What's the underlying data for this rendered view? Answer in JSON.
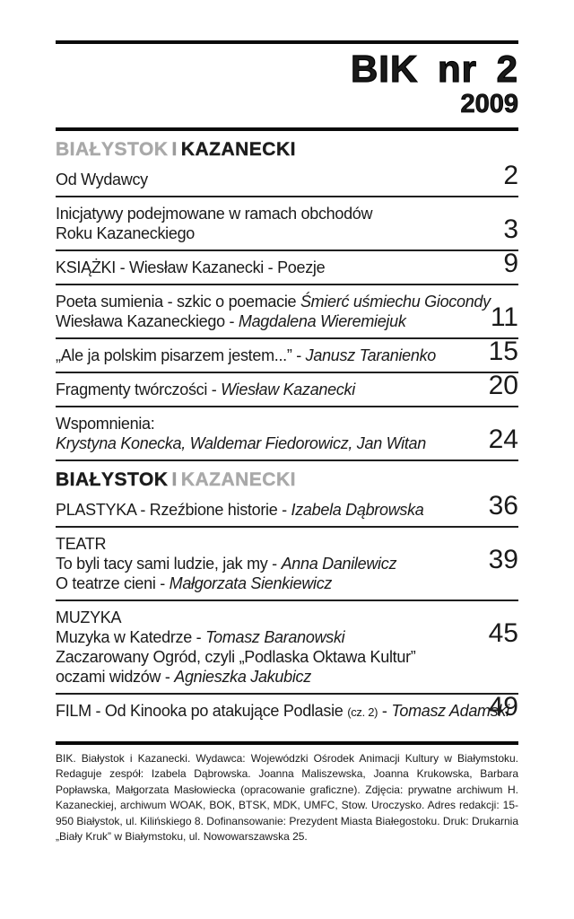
{
  "colors": {
    "ink": "#1a1a1a",
    "muted_gray": "#a9a9a9",
    "rule_black": "#0a0a0a"
  },
  "masthead": {
    "title": "BIK nr 2",
    "year": "2009"
  },
  "contents": {
    "section1": {
      "heading": {
        "left": "BIAŁYSTOK",
        "separator": "I",
        "right": "KAZANECKI"
      },
      "entries": [
        {
          "page": "2",
          "lines": [
            [
              {
                "text": "Od Wydawcy"
              }
            ]
          ]
        },
        {
          "page": "3",
          "lines": [
            [
              {
                "text": "Inicjatywy podejmowane w ramach obchodów"
              }
            ],
            [
              {
                "text": "Roku Kazaneckiego"
              }
            ]
          ]
        },
        {
          "page": "9",
          "lines": [
            [
              {
                "text": "KSIĄŻKI - Wiesław Kazanecki - Poezje"
              }
            ]
          ]
        },
        {
          "page": "11",
          "lines": [
            [
              {
                "text": "Poeta sumienia - szkic o poemacie "
              },
              {
                "text": "Śmierć uśmiechu Giocondy",
                "style": "italic"
              }
            ],
            [
              {
                "text": "Wiesława Kazaneckiego - "
              },
              {
                "text": "Magdalena Wieremiejuk",
                "style": "italic"
              }
            ]
          ]
        },
        {
          "page": "15",
          "lines": [
            [
              {
                "text": "„Ale ja polskim pisarzem jestem...” - "
              },
              {
                "text": "Janusz Taranienko",
                "style": "italic"
              }
            ]
          ]
        },
        {
          "page": "20",
          "lines": [
            [
              {
                "text": "Fragmenty twórczości - "
              },
              {
                "text": "Wiesław Kazanecki",
                "style": "italic"
              }
            ]
          ]
        },
        {
          "page": "24",
          "lines": [
            [
              {
                "text": "Wspomnienia:"
              }
            ],
            [
              {
                "text": "Krystyna Konecka, Waldemar Fiedorowicz, Jan Witan",
                "style": "italic"
              }
            ]
          ]
        }
      ]
    },
    "section2": {
      "heading": {
        "left": "BIAŁYSTOK",
        "separator": "I",
        "right": "KAZANECKI"
      },
      "entries": [
        {
          "page": "36",
          "lines": [
            [
              {
                "text": "PLASTYKA - Rzeźbione historie - "
              },
              {
                "text": "Izabela Dąbrowska",
                "style": "italic"
              }
            ]
          ]
        },
        {
          "page": "39",
          "lines": [
            [
              {
                "text": "TEATR"
              }
            ],
            [
              {
                "text": "To byli tacy sami ludzie, jak my - "
              },
              {
                "text": "Anna Danilewicz",
                "style": "italic"
              }
            ],
            [
              {
                "text": "O teatrze cieni - "
              },
              {
                "text": "Małgorzata Sienkiewicz",
                "style": "italic"
              }
            ]
          ]
        },
        {
          "page": "45",
          "lines": [
            [
              {
                "text": "MUZYKA"
              }
            ],
            [
              {
                "text": "Muzyka w Katedrze - "
              },
              {
                "text": "Tomasz Baranowski",
                "style": "italic"
              }
            ],
            [
              {
                "text": "Zaczarowany Ogród, czyli „Podlaska Oktawa Kultur”"
              }
            ],
            [
              {
                "text": "oczami widzów - "
              },
              {
                "text": "Agnieszka Jakubicz",
                "style": "italic"
              }
            ]
          ]
        },
        {
          "page": "49",
          "lines": [
            [
              {
                "text": "FILM - Od Kinooka po atakujące Podlasie "
              },
              {
                "text": "(cz. 2)",
                "style": "small"
              },
              {
                "text": " - "
              },
              {
                "text": "Tomasz Adamski",
                "style": "italic"
              }
            ]
          ]
        }
      ]
    }
  },
  "footer": {
    "text": "BIK. Białystok i Kazanecki. Wydawca: Wojewódzki Ośrodek Animacji Kultury w Białymstoku. Redaguje zespół: Izabela Dąbrowska. Joanna Maliszewska, Joanna Krukowska, Barbara Popławska, Małgorzata Masłowiecka (opracowanie graficzne). Zdjęcia: prywatne archiwum H. Kazaneckiej, archiwum WOAK, BOK, BTSK, MDK, UMFC, Stow. Uroczysko. Adres redakcji: 15-950 Białystok, ul. Kilińskiego 8. Dofinansowanie: Prezydent Miasta Białegostoku. Druk: Drukarnia „Biały Kruk” w Białymstoku, ul. Nowowarszawska 25."
  }
}
